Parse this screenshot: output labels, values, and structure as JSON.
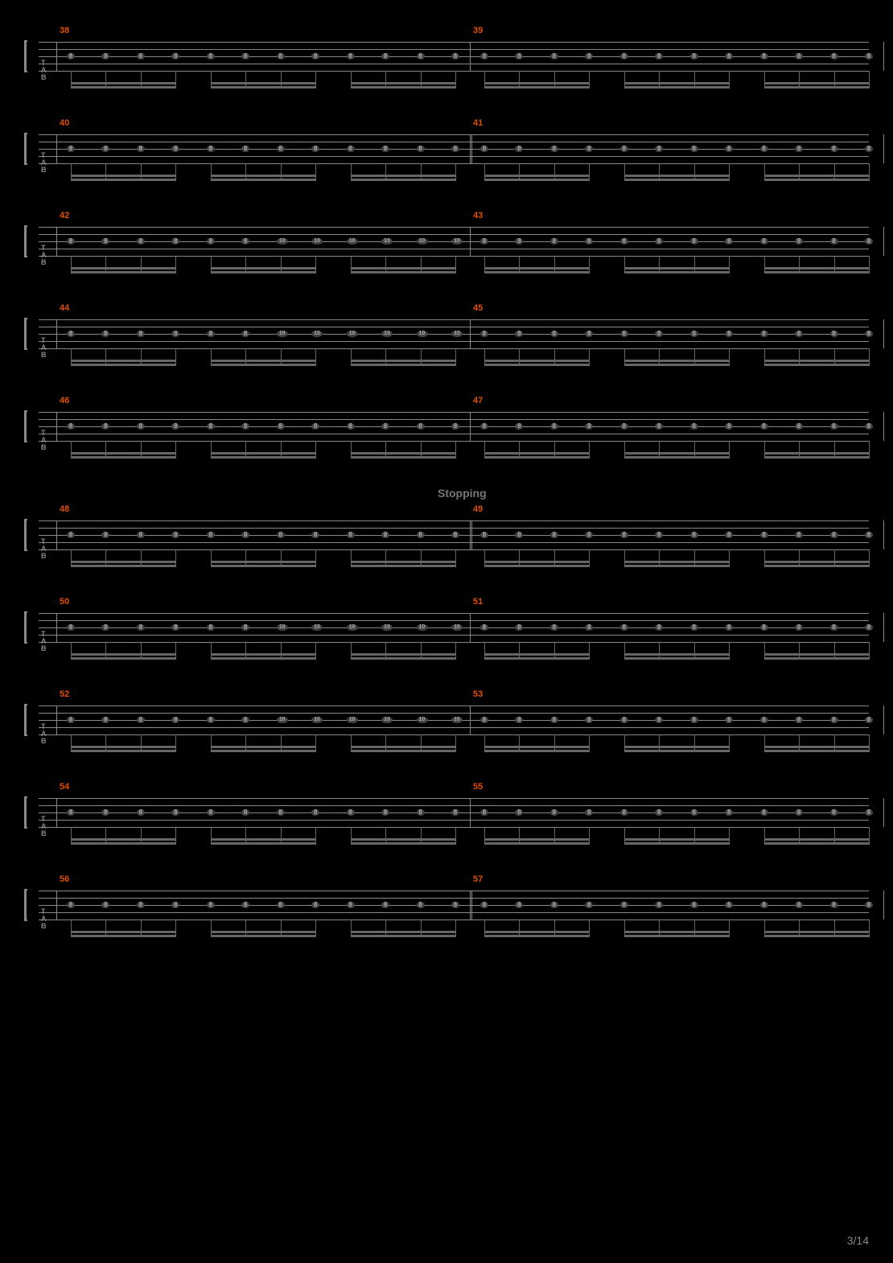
{
  "page_number": "3/14",
  "section_label": "Stopping",
  "section_label_before_row": 5,
  "background_color": "#000000",
  "staff_line_color": "#888888",
  "measure_num_color": "#e05000",
  "note_color": "#444444",
  "note_text_color": "#aaaaaa",
  "section_label_color": "#777777",
  "clef_letters": [
    "T",
    "A",
    "B"
  ],
  "num_staff_lines": 5,
  "notes_per_measure": 12,
  "beam_groups_per_measure": 3,
  "rows": [
    {
      "measures": [
        {
          "num": "38",
          "double_end": false,
          "frets": [
            "8",
            "8",
            "8",
            "8",
            "8",
            "8",
            "8",
            "8",
            "8",
            "8",
            "8",
            "8"
          ]
        },
        {
          "num": "39",
          "double_end": false,
          "frets": [
            "8",
            "8",
            "8",
            "8",
            "8",
            "8",
            "8",
            "8",
            "8",
            "8",
            "8",
            "8"
          ]
        }
      ]
    },
    {
      "measures": [
        {
          "num": "40",
          "double_end": true,
          "frets": [
            "8",
            "8",
            "8",
            "8",
            "8",
            "8",
            "8",
            "8",
            "8",
            "8",
            "8",
            "8"
          ]
        },
        {
          "num": "41",
          "double_end": false,
          "frets": [
            "8",
            "8",
            "8",
            "8",
            "8",
            "8",
            "8",
            "8",
            "8",
            "8",
            "8",
            "8"
          ]
        }
      ]
    },
    {
      "measures": [
        {
          "num": "42",
          "double_end": false,
          "frets": [
            "8",
            "8",
            "8",
            "8",
            "8",
            "8",
            "10",
            "10",
            "10",
            "10",
            "10",
            "10"
          ]
        },
        {
          "num": "43",
          "double_end": false,
          "frets": [
            "8",
            "8",
            "8",
            "8",
            "8",
            "8",
            "8",
            "8",
            "8",
            "8",
            "8",
            "8"
          ]
        }
      ]
    },
    {
      "measures": [
        {
          "num": "44",
          "double_end": false,
          "frets": [
            "8",
            "8",
            "8",
            "8",
            "8",
            "8",
            "10",
            "10",
            "10",
            "10",
            "10",
            "10"
          ]
        },
        {
          "num": "45",
          "double_end": false,
          "frets": [
            "8",
            "8",
            "8",
            "8",
            "8",
            "8",
            "8",
            "8",
            "8",
            "8",
            "8",
            "8"
          ]
        }
      ]
    },
    {
      "measures": [
        {
          "num": "46",
          "double_end": false,
          "frets": [
            "8",
            "8",
            "8",
            "8",
            "8",
            "8",
            "8",
            "8",
            "8",
            "8",
            "8",
            "8"
          ]
        },
        {
          "num": "47",
          "double_end": false,
          "frets": [
            "8",
            "8",
            "8",
            "8",
            "8",
            "8",
            "8",
            "8",
            "8",
            "8",
            "8",
            "8"
          ]
        }
      ]
    },
    {
      "measures": [
        {
          "num": "48",
          "double_end": true,
          "frets": [
            "8",
            "8",
            "8",
            "8",
            "8",
            "8",
            "8",
            "8",
            "8",
            "8",
            "8",
            "8"
          ]
        },
        {
          "num": "49",
          "double_end": false,
          "frets": [
            "8",
            "8",
            "8",
            "8",
            "8",
            "8",
            "8",
            "8",
            "8",
            "8",
            "8",
            "8"
          ]
        }
      ]
    },
    {
      "measures": [
        {
          "num": "50",
          "double_end": false,
          "frets": [
            "8",
            "8",
            "8",
            "8",
            "8",
            "8",
            "10",
            "10",
            "10",
            "10",
            "10",
            "10"
          ]
        },
        {
          "num": "51",
          "double_end": false,
          "frets": [
            "8",
            "8",
            "8",
            "8",
            "8",
            "8",
            "8",
            "8",
            "8",
            "8",
            "8",
            "8"
          ]
        }
      ]
    },
    {
      "measures": [
        {
          "num": "52",
          "double_end": false,
          "frets": [
            "8",
            "8",
            "8",
            "8",
            "8",
            "8",
            "10",
            "10",
            "10",
            "10",
            "10",
            "10"
          ]
        },
        {
          "num": "53",
          "double_end": false,
          "frets": [
            "8",
            "8",
            "8",
            "8",
            "8",
            "8",
            "8",
            "8",
            "8",
            "8",
            "8",
            "8"
          ]
        }
      ]
    },
    {
      "measures": [
        {
          "num": "54",
          "double_end": false,
          "frets": [
            "8",
            "8",
            "8",
            "8",
            "8",
            "8",
            "8",
            "8",
            "8",
            "8",
            "8",
            "8"
          ]
        },
        {
          "num": "55",
          "double_end": false,
          "frets": [
            "8",
            "8",
            "8",
            "8",
            "8",
            "8",
            "8",
            "8",
            "8",
            "8",
            "8",
            "8"
          ]
        }
      ]
    },
    {
      "extra_margin_top": 24,
      "measures": [
        {
          "num": "56",
          "double_end": true,
          "frets": [
            "8",
            "8",
            "8",
            "8",
            "8",
            "8",
            "8",
            "8",
            "8",
            "8",
            "8",
            "8"
          ]
        },
        {
          "num": "57",
          "double_end": false,
          "frets": [
            "8",
            "8",
            "8",
            "8",
            "8",
            "8",
            "8",
            "8",
            "8",
            "8",
            "8",
            "8"
          ]
        }
      ]
    }
  ]
}
